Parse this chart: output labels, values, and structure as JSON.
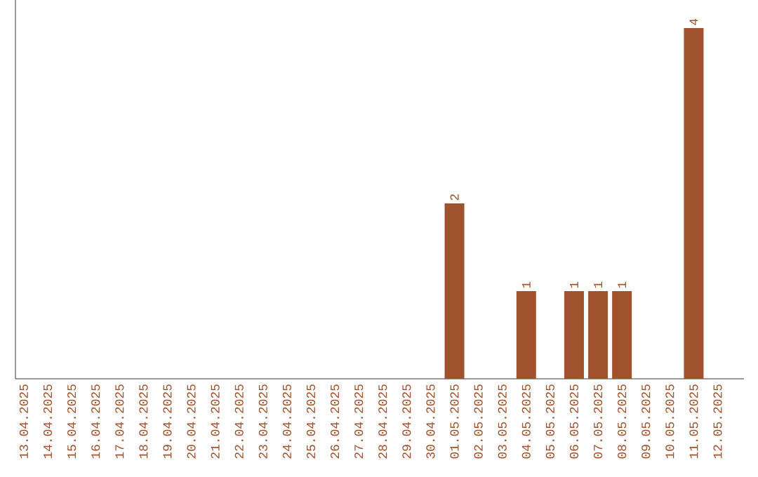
{
  "chart_data": {
    "type": "bar",
    "color": "#a0522d",
    "categories": [
      "13.04.2025",
      "14.04.2025",
      "15.04.2025",
      "16.04.2025",
      "17.04.2025",
      "18.04.2025",
      "19.04.2025",
      "20.04.2025",
      "21.04.2025",
      "22.04.2025",
      "23.04.2025",
      "24.04.2025",
      "25.04.2025",
      "26.04.2025",
      "27.04.2025",
      "28.04.2025",
      "29.04.2025",
      "30.04.2025",
      "01.05.2025",
      "02.05.2025",
      "03.05.2025",
      "04.05.2025",
      "05.05.2025",
      "06.05.2025",
      "07.05.2025",
      "08.05.2025",
      "09.05.2025",
      "10.05.2025",
      "11.05.2025",
      "12.05.2025"
    ],
    "values": [
      null,
      null,
      null,
      null,
      null,
      null,
      null,
      null,
      null,
      null,
      null,
      null,
      null,
      null,
      null,
      null,
      null,
      null,
      2,
      null,
      null,
      1,
      null,
      1,
      1,
      1,
      null,
      null,
      4,
      null
    ],
    "value_labels": [
      null,
      null,
      null,
      null,
      null,
      null,
      null,
      null,
      null,
      null,
      null,
      null,
      null,
      null,
      null,
      null,
      null,
      null,
      "2",
      null,
      null,
      "1",
      null,
      "1",
      "1",
      "1",
      null,
      null,
      "4",
      null
    ],
    "grid": false
  }
}
